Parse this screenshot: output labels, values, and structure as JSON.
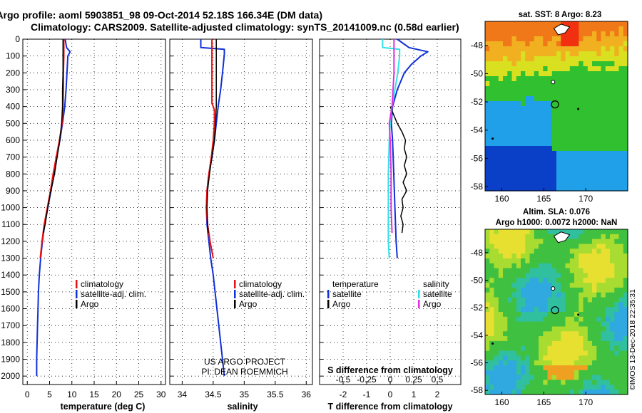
{
  "title": {
    "line1": "Argo profile: aoml 5903851_98 09-Oct-2014 52.18S 166.34E (DM data)",
    "line2": "Climatology: CARS2009. Satellite-adjusted climatology: synTS_20141009.nc (0.58d earlier)"
  },
  "credits": {
    "line1": "US ARGO PROJECT",
    "line2": "PI: DEAN ROEMMICH"
  },
  "timestamp": "©IMOS 13-Dec-2018 22:35:31",
  "colors": {
    "climatology": "#e81010",
    "satellite": "#1030d8",
    "argo": "#000000",
    "salinity_satellite": "#33e0e8",
    "salinity_argo": "#e030e0"
  },
  "chart_data": [
    {
      "type": "line",
      "name": "temperature",
      "xlabel": "temperature (deg C)",
      "xlim": [
        -1,
        31
      ],
      "ylim": [
        2050,
        0
      ],
      "x_ticks": [
        0,
        5,
        10,
        15,
        20,
        25,
        30
      ],
      "y_ticks": [
        0,
        100,
        200,
        300,
        400,
        500,
        600,
        700,
        800,
        900,
        1000,
        1100,
        1200,
        1300,
        1400,
        1500,
        1600,
        1700,
        1800,
        1900,
        2000
      ],
      "legend": [
        "climatology",
        "satellite-adj. clim.",
        "Argo"
      ],
      "series": [
        {
          "name": "climatology",
          "depth": [
            0,
            100,
            200,
            300,
            400,
            500,
            600,
            700,
            800,
            900,
            1000,
            1100,
            1200,
            1300
          ],
          "values": [
            8.2,
            8.2,
            8.1,
            8.1,
            8.0,
            7.8,
            7.2,
            6.5,
            5.8,
            5.2,
            4.5,
            3.8,
            3.3,
            2.9
          ]
        },
        {
          "name": "satellite-adj. clim.",
          "depth": [
            0,
            50,
            75,
            100,
            200,
            300,
            400,
            500,
            600,
            700,
            800,
            900,
            1000,
            1100,
            1200,
            1300,
            1400,
            1500,
            1600,
            1700,
            1800,
            1900,
            2000
          ],
          "values": [
            8.5,
            8.8,
            9.6,
            9.1,
            8.9,
            8.7,
            8.4,
            7.9,
            7.3,
            6.6,
            6.0,
            5.3,
            4.6,
            3.9,
            3.4,
            3.0,
            2.7,
            2.5,
            2.4,
            2.3,
            2.2,
            2.1,
            2.1
          ]
        },
        {
          "name": "Argo",
          "depth": [
            0,
            100,
            200,
            300,
            400,
            500,
            600,
            700,
            800,
            900,
            1000,
            1100,
            1150
          ],
          "values": [
            8.0,
            8.0,
            8.0,
            7.9,
            7.9,
            7.7,
            7.3,
            6.7,
            6.1,
            5.3,
            4.6,
            4.0,
            3.6
          ]
        }
      ]
    },
    {
      "type": "line",
      "name": "salinity",
      "xlabel": "salinity",
      "xlim": [
        33.8,
        36.1
      ],
      "ylim": [
        2050,
        0
      ],
      "x_ticks": [
        34,
        34.5,
        35,
        35.5,
        36
      ],
      "legend": [
        "climatology",
        "satellite-adj. clim.",
        "Argo"
      ],
      "series": [
        {
          "name": "climatology",
          "depth": [
            0,
            100,
            200,
            300,
            380,
            420,
            500,
            600,
            700,
            800,
            900,
            1000,
            1100,
            1200,
            1300
          ],
          "values": [
            34.48,
            34.48,
            34.48,
            34.48,
            34.48,
            34.52,
            34.52,
            34.5,
            34.47,
            34.43,
            34.4,
            34.39,
            34.41,
            34.45,
            34.5
          ]
        },
        {
          "name": "satellite-adj. clim.",
          "depth": [
            0,
            50,
            60,
            90,
            200,
            300,
            400,
            500,
            600,
            700,
            800,
            900,
            1000,
            1100,
            1200,
            1300,
            1400,
            1500,
            1600,
            1700,
            1800,
            1900,
            2000
          ],
          "values": [
            34.3,
            34.3,
            34.68,
            34.68,
            34.65,
            34.62,
            34.58,
            34.55,
            34.52,
            34.48,
            34.43,
            34.4,
            34.39,
            34.4,
            34.43,
            34.46,
            34.5,
            34.53,
            34.56,
            34.59,
            34.62,
            34.65,
            34.68
          ]
        },
        {
          "name": "Argo",
          "depth": [
            0,
            100,
            200,
            300,
            400,
            500,
            600,
            700,
            800,
            900,
            1000,
            1100,
            1150
          ],
          "values": [
            34.55,
            34.55,
            34.55,
            34.55,
            34.55,
            34.54,
            34.52,
            34.48,
            34.44,
            34.41,
            34.4,
            34.41,
            34.42
          ]
        }
      ]
    },
    {
      "type": "line",
      "name": "differences",
      "xlabel": "T difference from climatology",
      "xlabel2": "S difference from climatology",
      "xlim": [
        -3,
        3
      ],
      "ylim": [
        2050,
        0
      ],
      "x_ticks": [
        -2,
        -1,
        0,
        1,
        2
      ],
      "x_tick_labels": [
        "-2",
        "-1",
        "0",
        "1",
        "2"
      ],
      "x2_ticks": [
        -0.5,
        -0.25,
        0,
        0.25,
        0.5
      ],
      "x2_tick_labels": [
        "-0.5",
        "-0.25",
        "0",
        "0.25",
        "0.5"
      ],
      "legend_temperature": [
        "temperature",
        "satellite",
        "Argo"
      ],
      "legend_salinity": [
        "salinity",
        "satellite",
        "Argo"
      ],
      "series": [
        {
          "name": "T satellite",
          "depth": [
            0,
            50,
            75,
            100,
            150,
            200,
            300,
            400,
            500,
            600,
            800,
            1000,
            1200,
            1300
          ],
          "values": [
            0.3,
            0.8,
            1.6,
            1.3,
            0.9,
            0.6,
            0.3,
            0.1,
            0.05,
            0.1,
            0.15,
            0.2,
            0.25,
            0.3
          ]
        },
        {
          "name": "T Argo",
          "depth": [
            400,
            500,
            550,
            600,
            650,
            700,
            750,
            800,
            850,
            900,
            950,
            1000,
            1050,
            1100,
            1150
          ],
          "values": [
            0.0,
            0.3,
            0.5,
            0.65,
            0.6,
            0.7,
            0.6,
            0.7,
            0.55,
            0.7,
            0.5,
            0.55,
            0.45,
            0.55,
            0.5
          ]
        },
        {
          "name": "S satellite",
          "depth": [
            0,
            50,
            60,
            100,
            200,
            300,
            400,
            500,
            600,
            800,
            1000,
            1200,
            1300
          ],
          "values": [
            -0.08,
            -0.08,
            0.1,
            0.1,
            0.08,
            0.05,
            0.02,
            0.0,
            -0.01,
            -0.02,
            -0.02,
            -0.02,
            -0.01
          ]
        },
        {
          "name": "S Argo",
          "depth": [
            0,
            100,
            200,
            300,
            400,
            500,
            600,
            800,
            1000,
            1150
          ],
          "values": [
            0.04,
            0.04,
            0.04,
            0.03,
            0.02,
            -0.01,
            0.0,
            0.01,
            0.01,
            0.02
          ]
        }
      ]
    },
    {
      "type": "heatmap",
      "name": "sst-map",
      "title": "sat. SST: 8 Argo: 8.23",
      "xlim": [
        158,
        175
      ],
      "ylim": [
        -58.3,
        -46.3
      ],
      "x_ticks": [
        160,
        165,
        170
      ],
      "y_ticks": [
        -48,
        -50,
        -52,
        -54,
        -56,
        -58
      ]
    },
    {
      "type": "heatmap",
      "name": "sla-map",
      "title": "Altim. SLA: 0.076",
      "subtitle": "Argo h1000: 0.0072 h2000: NaN",
      "xlim": [
        158,
        175
      ],
      "ylim": [
        -58.3,
        -46.3
      ],
      "x_ticks": [
        160,
        165,
        170
      ],
      "y_ticks": [
        -48,
        -50,
        -52,
        -54,
        -56,
        -58
      ]
    }
  ]
}
